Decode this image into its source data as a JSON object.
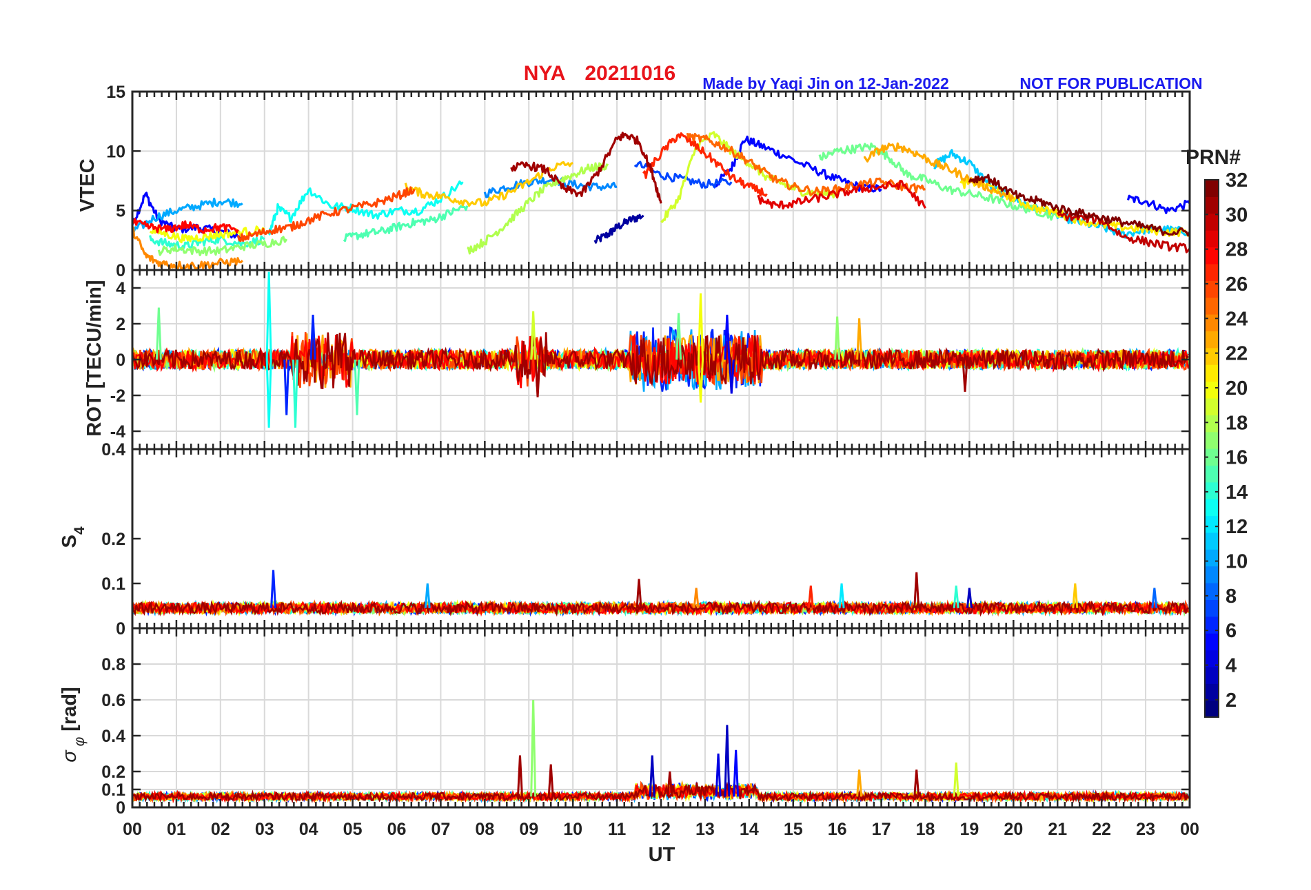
{
  "header": {
    "station": "NYA",
    "date": "20211016",
    "credit": "Made by Yaqi Jin on 12-Jan-2022",
    "notice": "NOT FOR PUBLICATION"
  },
  "colors": {
    "title": "#e8141b",
    "credit": "#1a1aee",
    "grid": "#d9d9d9",
    "axis": "#262626"
  },
  "colorbar": {
    "label": "PRN#",
    "range": [
      1,
      32
    ],
    "ticks": [
      "2",
      "4",
      "6",
      "8",
      "10",
      "12",
      "14",
      "16",
      "18",
      "20",
      "22",
      "24",
      "26",
      "28",
      "30",
      "32"
    ],
    "colormap": "jet"
  },
  "chart_data": [
    {
      "type": "line",
      "panel": "vtec",
      "ylabel": "VTEC",
      "ylim": [
        0,
        15
      ],
      "yticks": [
        "0",
        "5",
        "10",
        "15"
      ],
      "xlim": [
        0,
        24
      ],
      "grid": true,
      "series": [
        {
          "prn": 2,
          "x": [
            10.5,
            10.8,
            11.0,
            11.3,
            11.6
          ],
          "y": [
            2.4,
            3.0,
            3.6,
            4.2,
            4.6
          ]
        },
        {
          "prn": 5,
          "x": [
            0.0,
            0.3,
            0.6,
            1.0,
            1.5,
            2.0,
            2.5
          ],
          "y": [
            3.8,
            6.4,
            4.2,
            3.4,
            3.6,
            3.2,
            2.8
          ]
        },
        {
          "prn": 5,
          "x": [
            13.2,
            13.6,
            13.9,
            14.3,
            14.8,
            15.5,
            16.0,
            16.5,
            17.0
          ],
          "y": [
            7.0,
            8.6,
            11.0,
            10.4,
            9.6,
            8.4,
            7.6,
            7.0,
            6.8
          ]
        },
        {
          "prn": 5,
          "x": [
            22.6,
            23.0,
            23.5,
            24.0
          ],
          "y": [
            6.0,
            5.8,
            5.0,
            5.6
          ]
        },
        {
          "prn": 7,
          "x": [
            11.4,
            12.0,
            12.5,
            13.0,
            13.6
          ],
          "y": [
            9.0,
            8.0,
            7.6,
            7.2,
            7.4
          ]
        },
        {
          "prn": 9,
          "x": [
            8.0,
            8.5,
            9.0,
            9.5,
            10.0,
            10.5,
            11.0
          ],
          "y": [
            6.4,
            7.0,
            7.4,
            7.6,
            7.2,
            7.0,
            7.0
          ]
        },
        {
          "prn": 10,
          "x": [
            0.0,
            0.5,
            1.0,
            1.5,
            2.0,
            2.5
          ],
          "y": [
            3.2,
            4.4,
            5.0,
            5.4,
            5.8,
            5.6
          ]
        },
        {
          "prn": 11,
          "x": [
            18.2,
            18.6,
            19.0,
            19.5,
            20.0,
            20.5,
            21.0,
            21.5,
            22.0,
            22.5,
            23.0,
            23.5,
            24.0
          ],
          "y": [
            8.8,
            9.8,
            9.0,
            7.0,
            6.0,
            5.2,
            4.6,
            4.0,
            3.6,
            3.0,
            3.4,
            3.4,
            3.2
          ]
        },
        {
          "prn": 13,
          "x": [
            3.1,
            3.3,
            3.6,
            4.0,
            4.5,
            5.0,
            5.5,
            6.0,
            6.5,
            7.0,
            7.5
          ],
          "y": [
            3.0,
            5.2,
            4.4,
            6.8,
            5.4,
            5.2,
            4.6,
            5.0,
            5.0,
            6.0,
            7.4
          ]
        },
        {
          "prn": 14,
          "x": [
            0.4,
            0.8,
            1.2,
            1.6,
            2.0,
            2.5,
            3.0
          ],
          "y": [
            2.6,
            2.2,
            2.0,
            2.4,
            2.6,
            2.2,
            2.6
          ]
        },
        {
          "prn": 15,
          "x": [
            4.8,
            5.2,
            5.6,
            6.0,
            6.4,
            6.8,
            7.2,
            7.6
          ],
          "y": [
            2.6,
            3.0,
            3.2,
            3.6,
            4.0,
            4.2,
            4.8,
            5.4
          ]
        },
        {
          "prn": 16,
          "x": [
            15.6,
            16.0,
            16.4,
            16.8,
            17.2,
            17.6,
            18.0,
            18.5,
            19.0,
            19.5,
            20.0,
            20.5,
            21.0
          ],
          "y": [
            9.4,
            10.0,
            10.2,
            10.4,
            9.4,
            8.0,
            7.6,
            6.8,
            6.4,
            6.0,
            5.4,
            5.0,
            4.4
          ]
        },
        {
          "prn": 17,
          "x": [
            0.6,
            1.0,
            1.5,
            2.0,
            2.5,
            3.0,
            3.5
          ],
          "y": [
            1.6,
            1.8,
            1.6,
            1.6,
            2.0,
            2.2,
            2.6
          ]
        },
        {
          "prn": 18,
          "x": [
            7.6,
            8.0,
            8.4,
            8.8,
            9.2,
            9.6,
            10.0,
            10.4,
            10.8
          ],
          "y": [
            1.6,
            2.4,
            3.6,
            5.0,
            6.4,
            7.4,
            8.0,
            8.6,
            8.8
          ]
        },
        {
          "prn": 19,
          "x": [
            12.0,
            12.4,
            12.8,
            13.2,
            13.6,
            14.0,
            14.4,
            14.8,
            15.2,
            15.6,
            16.0
          ],
          "y": [
            4.0,
            6.0,
            10.4,
            11.4,
            10.0,
            9.0,
            7.8,
            7.2,
            6.6,
            6.4,
            6.4
          ]
        },
        {
          "prn": 20,
          "x": [
            0.4,
            0.8,
            1.2,
            1.6,
            2.0,
            2.5,
            3.0
          ],
          "y": [
            3.4,
            3.0,
            2.6,
            2.8,
            3.0,
            3.2,
            3.4
          ]
        },
        {
          "prn": 21,
          "x": [
            18.8,
            19.2,
            19.6,
            20.0,
            20.5,
            21.0,
            21.5,
            22.0,
            22.5,
            23.0,
            23.5,
            24.0
          ],
          "y": [
            7.2,
            7.4,
            6.8,
            6.0,
            5.2,
            4.8,
            4.2,
            3.8,
            3.6,
            3.4,
            3.2,
            3.2
          ]
        },
        {
          "prn": 22,
          "x": [
            6.2,
            6.6,
            7.0,
            7.5,
            8.0,
            8.5,
            9.0,
            9.5,
            10.0
          ],
          "y": [
            7.0,
            6.4,
            6.2,
            5.8,
            5.6,
            6.4,
            7.4,
            8.6,
            9.0
          ]
        },
        {
          "prn": 23,
          "x": [
            16.6,
            17.0,
            17.4,
            17.8,
            18.2,
            18.6,
            19.0,
            19.5,
            20.0
          ],
          "y": [
            9.2,
            10.2,
            10.4,
            9.8,
            9.0,
            8.4,
            7.6,
            6.8,
            6.0
          ]
        },
        {
          "prn": 24,
          "x": [
            0.0,
            0.3,
            0.6,
            1.0,
            1.5,
            2.0,
            2.5
          ],
          "y": [
            3.4,
            1.2,
            0.6,
            0.4,
            0.4,
            0.6,
            0.8
          ]
        },
        {
          "prn": 25,
          "x": [
            12.6,
            13.0,
            13.4,
            13.8,
            14.2,
            14.6,
            15.0,
            15.5,
            16.0,
            16.5,
            17.0,
            17.5,
            18.0
          ],
          "y": [
            11.2,
            11.0,
            10.4,
            9.6,
            8.6,
            7.6,
            7.0,
            6.6,
            6.8,
            7.2,
            7.4,
            7.0,
            6.8
          ]
        },
        {
          "prn": 26,
          "x": [
            2.4,
            2.8,
            3.2,
            3.6,
            4.0,
            4.5,
            5.0,
            5.5,
            6.0,
            6.4
          ],
          "y": [
            2.6,
            3.0,
            3.4,
            3.6,
            4.2,
            4.8,
            5.2,
            5.6,
            6.2,
            6.8
          ]
        },
        {
          "prn": 27,
          "x": [
            11.6,
            12.0,
            12.4,
            12.8,
            13.2,
            13.6,
            14.0,
            14.4
          ],
          "y": [
            7.8,
            9.8,
            11.4,
            10.4,
            9.2,
            7.8,
            7.0,
            6.4
          ]
        },
        {
          "prn": 28,
          "x": [
            0.0,
            0.4,
            0.8,
            1.2,
            1.6,
            2.0,
            2.4
          ],
          "y": [
            4.0,
            3.6,
            3.4,
            3.8,
            3.4,
            3.6,
            3.4
          ]
        },
        {
          "prn": 29,
          "x": [
            14.2,
            14.6,
            15.0,
            15.5,
            16.0,
            16.5,
            17.0,
            17.5,
            18.0
          ],
          "y": [
            6.0,
            5.4,
            5.6,
            6.0,
            6.4,
            6.8,
            7.0,
            7.2,
            5.2
          ]
        },
        {
          "prn": 30,
          "x": [
            21.0,
            21.5,
            22.0,
            22.5,
            23.0,
            23.5,
            24.0
          ],
          "y": [
            4.6,
            4.4,
            4.2,
            2.8,
            2.4,
            2.0,
            1.8
          ]
        },
        {
          "prn": 31,
          "x": [
            8.6,
            9.0,
            9.4,
            9.8,
            10.2,
            10.6,
            11.0,
            11.2,
            11.5,
            11.8,
            12.0
          ],
          "y": [
            8.6,
            8.8,
            8.4,
            6.8,
            6.4,
            8.4,
            11.0,
            11.4,
            10.8,
            8.2,
            5.6
          ]
        },
        {
          "prn": 32,
          "x": [
            19.0,
            19.4,
            19.8,
            20.2,
            20.6,
            21.0,
            21.5,
            22.0,
            22.5,
            23.0,
            23.5,
            24.0
          ],
          "y": [
            7.6,
            7.8,
            6.8,
            6.0,
            5.8,
            5.2,
            4.8,
            4.4,
            4.0,
            3.6,
            3.2,
            3.2
          ]
        }
      ]
    },
    {
      "type": "line",
      "panel": "rot",
      "ylabel": "ROT [TECU/min]",
      "ylim": [
        -5,
        5
      ],
      "yticks": [
        "-4",
        "-2",
        "0",
        "2",
        "4"
      ],
      "xlim": [
        0,
        24
      ],
      "grid": true,
      "spikes": [
        {
          "x": 0.6,
          "y": 2.9,
          "prn": 16
        },
        {
          "x": 3.1,
          "y": 4.9,
          "prn": 13
        },
        {
          "x": 3.1,
          "y": -3.8,
          "prn": 13
        },
        {
          "x": 3.5,
          "y": -3.1,
          "prn": 6
        },
        {
          "x": 3.7,
          "y": -3.8,
          "prn": 14
        },
        {
          "x": 4.1,
          "y": 2.5,
          "prn": 6
        },
        {
          "x": 5.1,
          "y": -3.1,
          "prn": 15
        },
        {
          "x": 9.1,
          "y": 2.7,
          "prn": 19
        },
        {
          "x": 9.2,
          "y": -2.1,
          "prn": 31
        },
        {
          "x": 12.4,
          "y": 2.6,
          "prn": 16
        },
        {
          "x": 12.9,
          "y": 3.7,
          "prn": 20
        },
        {
          "x": 12.9,
          "y": -2.4,
          "prn": 20
        },
        {
          "x": 13.5,
          "y": 2.5,
          "prn": 5
        },
        {
          "x": 13.6,
          "y": -1.9,
          "prn": 4
        },
        {
          "x": 16.0,
          "y": 2.4,
          "prn": 17
        },
        {
          "x": 16.5,
          "y": 2.3,
          "prn": 23
        },
        {
          "x": 18.9,
          "y": -1.8,
          "prn": 31
        }
      ],
      "bursts": [
        {
          "x": [
            3.6,
            5.0
          ],
          "amp": 1.6,
          "prn": 27
        },
        {
          "x": [
            8.7,
            9.4
          ],
          "amp": 1.6,
          "prn": 31
        },
        {
          "x": [
            11.3,
            14.3
          ],
          "amp": 1.8,
          "prn": 5
        },
        {
          "x": [
            11.3,
            14.3
          ],
          "amp": 1.4,
          "prn": 27
        }
      ]
    },
    {
      "type": "line",
      "panel": "s4",
      "ylabel": "S4",
      "ylim": [
        0,
        0.4
      ],
      "yticks": [
        "0",
        "0.1",
        "0.2",
        "0.4"
      ],
      "xlim": [
        0,
        24
      ],
      "grid": false,
      "baseline": 0.045,
      "spikes": [
        {
          "x": 3.2,
          "y": 0.13,
          "prn": 6
        },
        {
          "x": 6.7,
          "y": 0.1,
          "prn": 10
        },
        {
          "x": 11.5,
          "y": 0.11,
          "prn": 31
        },
        {
          "x": 12.8,
          "y": 0.09,
          "prn": 24
        },
        {
          "x": 15.4,
          "y": 0.095,
          "prn": 27
        },
        {
          "x": 16.1,
          "y": 0.1,
          "prn": 12
        },
        {
          "x": 17.8,
          "y": 0.125,
          "prn": 31
        },
        {
          "x": 18.7,
          "y": 0.095,
          "prn": 14
        },
        {
          "x": 19.0,
          "y": 0.09,
          "prn": 3
        },
        {
          "x": 21.4,
          "y": 0.1,
          "prn": 22
        },
        {
          "x": 23.2,
          "y": 0.09,
          "prn": 8
        }
      ]
    },
    {
      "type": "line",
      "panel": "sigma_phi",
      "ylabel": "σ φ [rad]",
      "ylim": [
        0,
        1.0
      ],
      "yticks": [
        "0",
        "0.1",
        "0.2",
        "0.4",
        "0.6",
        "0.8"
      ],
      "xlim": [
        0,
        24
      ],
      "grid": true,
      "baseline": 0.06,
      "spikes": [
        {
          "x": 8.8,
          "y": 0.29,
          "prn": 31
        },
        {
          "x": 9.1,
          "y": 0.6,
          "prn": 17
        },
        {
          "x": 9.5,
          "y": 0.24,
          "prn": 31
        },
        {
          "x": 11.8,
          "y": 0.29,
          "prn": 3
        },
        {
          "x": 12.2,
          "y": 0.2,
          "prn": 31
        },
        {
          "x": 13.3,
          "y": 0.3,
          "prn": 4
        },
        {
          "x": 13.5,
          "y": 0.46,
          "prn": 3
        },
        {
          "x": 13.7,
          "y": 0.32,
          "prn": 5
        },
        {
          "x": 16.5,
          "y": 0.21,
          "prn": 23
        },
        {
          "x": 17.8,
          "y": 0.21,
          "prn": 31
        },
        {
          "x": 18.7,
          "y": 0.25,
          "prn": 19
        }
      ]
    }
  ],
  "xaxis": {
    "label": "UT",
    "ticks": [
      "00",
      "01",
      "02",
      "03",
      "04",
      "05",
      "06",
      "07",
      "08",
      "09",
      "10",
      "11",
      "12",
      "13",
      "14",
      "15",
      "16",
      "17",
      "18",
      "19",
      "20",
      "21",
      "22",
      "23",
      "00"
    ]
  }
}
